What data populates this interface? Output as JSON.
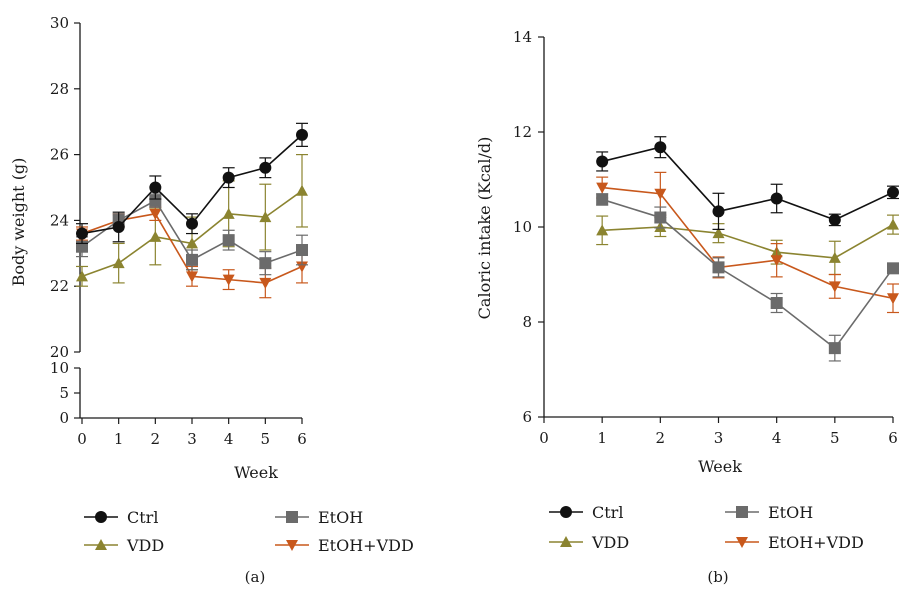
{
  "colors": {
    "Ctrl": "#111111",
    "EtOH": "#6b6b6b",
    "VDD": "#8b8430",
    "EtOH+VDD": "#c8581c",
    "axis": "#1a1a1a"
  },
  "markers": {
    "Ctrl": "circle",
    "EtOH": "square",
    "VDD": "triangle-up",
    "EtOH+VDD": "triangle-down"
  },
  "legend_labels": {
    "ctrl": "Ctrl",
    "etoh": "EtOH",
    "vdd": "VDD",
    "etoh_vdd": "EtOH+VDD"
  },
  "panels": {
    "a": {
      "label": "(a)",
      "xlabel": "Week",
      "ylabel": "Body weight (g)"
    },
    "b": {
      "label": "(b)",
      "xlabel": "Week",
      "ylabel": "Caloric intake (Kcal/d)"
    }
  },
  "chart_data": [
    {
      "type": "line",
      "panel": "(a)",
      "xlabel": "Week",
      "ylabel": "Body weight (g)",
      "x": [
        0,
        1,
        2,
        3,
        4,
        5,
        6
      ],
      "xticks": [
        "0",
        "1",
        "2",
        "3",
        "4",
        "5",
        "6"
      ],
      "y_broken_axis": true,
      "ylim_lower": [
        0,
        10
      ],
      "yticks_lower": [
        "0",
        "5",
        "10"
      ],
      "ylim_upper": [
        20,
        30
      ],
      "yticks_upper": [
        "20",
        "22",
        "24",
        "26",
        "28",
        "30"
      ],
      "legend_position": "bottom",
      "series": [
        {
          "name": "Ctrl",
          "values": [
            23.6,
            23.8,
            25.0,
            23.9,
            25.3,
            25.6,
            26.6
          ],
          "errors": [
            0.3,
            0.45,
            0.35,
            0.3,
            0.3,
            0.3,
            0.35
          ]
        },
        {
          "name": "EtOH",
          "values": [
            23.2,
            24.0,
            24.6,
            22.8,
            23.4,
            22.7,
            23.1
          ],
          "errors": [
            0.3,
            0.2,
            0.2,
            0.3,
            0.3,
            0.35,
            0.45
          ]
        },
        {
          "name": "VDD",
          "values": [
            22.3,
            22.7,
            23.5,
            23.3,
            24.2,
            24.1,
            24.9
          ],
          "errors": [
            0.3,
            0.6,
            0.85,
            0.8,
            1.0,
            1.0,
            1.1
          ]
        },
        {
          "name": "EtOH+VDD",
          "values": [
            23.6,
            24.0,
            24.2,
            22.3,
            22.2,
            22.1,
            22.6
          ],
          "errors": [
            0.2,
            0.2,
            0.2,
            0.3,
            0.3,
            0.45,
            0.5
          ]
        }
      ]
    },
    {
      "type": "line",
      "panel": "(b)",
      "xlabel": "Week",
      "ylabel": "Caloric intake (Kcal/d)",
      "x": [
        1,
        2,
        3,
        4,
        5,
        6
      ],
      "xlim": [
        0,
        6
      ],
      "xticks": [
        "0",
        "1",
        "2",
        "3",
        "4",
        "5",
        "6"
      ],
      "ylim": [
        6,
        14
      ],
      "yticks": [
        "6",
        "8",
        "10",
        "12",
        "14"
      ],
      "legend_position": "bottom",
      "series": [
        {
          "name": "Ctrl",
          "values": [
            11.38,
            11.68,
            10.33,
            10.6,
            10.15,
            10.73
          ],
          "errors": [
            0.2,
            0.22,
            0.38,
            0.3,
            0.12,
            0.13
          ]
        },
        {
          "name": "EtOH",
          "values": [
            10.58,
            10.2,
            9.15,
            8.4,
            7.45,
            9.13
          ],
          "errors": [
            0.12,
            0.22,
            0.2,
            0.2,
            0.27,
            0.1
          ]
        },
        {
          "name": "VDD",
          "values": [
            9.93,
            10.0,
            9.87,
            9.47,
            9.35,
            10.05
          ],
          "errors": [
            0.3,
            0.2,
            0.2,
            0.25,
            0.35,
            0.2
          ]
        },
        {
          "name": "EtOH+VDD",
          "values": [
            10.83,
            10.7,
            9.15,
            9.3,
            8.75,
            8.5
          ],
          "errors": [
            0.22,
            0.45,
            0.22,
            0.35,
            0.25,
            0.3
          ]
        }
      ]
    }
  ]
}
